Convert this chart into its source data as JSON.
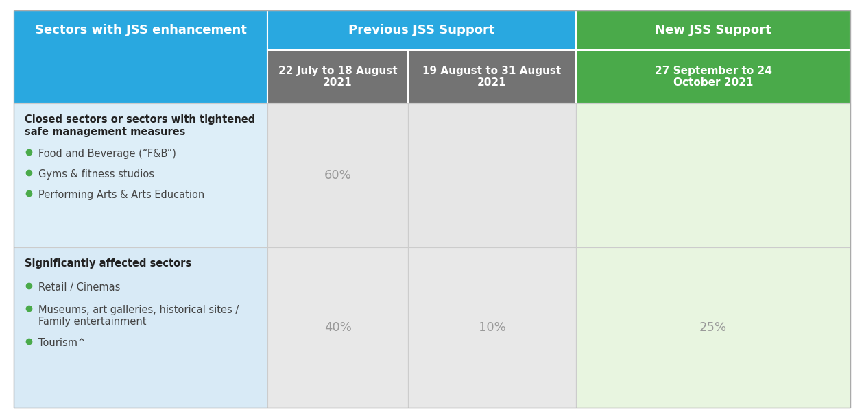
{
  "title_col1": "Sectors with JSS enhancement",
  "title_col2": "Previous JSS Support",
  "title_col3": "New JSS Support",
  "sub_col2a": "22 July to 18 August\n2021",
  "sub_col2b": "19 August to 31 August\n2021",
  "sub_col3": "27 September to 24\nOctober 2021",
  "row1_header_line1": "Closed sectors or sectors with tightened",
  "row1_header_line2": "safe management measures",
  "row1_bullets": [
    "Food and Beverage (“F&B”)",
    "Gyms & fitness studios",
    "Performing Arts & Arts Education"
  ],
  "row1_col2a": "60%",
  "row1_col2b": "",
  "row1_col3": "",
  "row2_header": "Significantly affected sectors",
  "row2_bullets": [
    "Retail / Cinemas",
    "Museums, art galleries, historical sites /\nFamily entertainment",
    "Tourism^"
  ],
  "row2_col2a": "40%",
  "row2_col2b": "10%",
  "row2_col3": "25%",
  "color_header_blue": "#29a8e0",
  "color_header_gray": "#737373",
  "color_header_green": "#4aaa4a",
  "color_row1_col1": "#ddeef8",
  "color_row1_col2a": "#e6e6e6",
  "color_row1_col2b": "#e6e6e6",
  "color_row1_col3": "#e8f5e0",
  "color_row2_col1": "#d8eaf6",
  "color_row2_col2a": "#e8e8e8",
  "color_row2_col2b": "#e8e8e8",
  "color_row2_col3": "#e8f5e0",
  "text_color_header": "#ffffff",
  "text_color_body_bold": "#222222",
  "text_color_body": "#444444",
  "text_color_percent": "#999999",
  "bullet_color": "#4aaa4a",
  "fig_width": 12.6,
  "fig_height": 6.1,
  "dpi": 100
}
